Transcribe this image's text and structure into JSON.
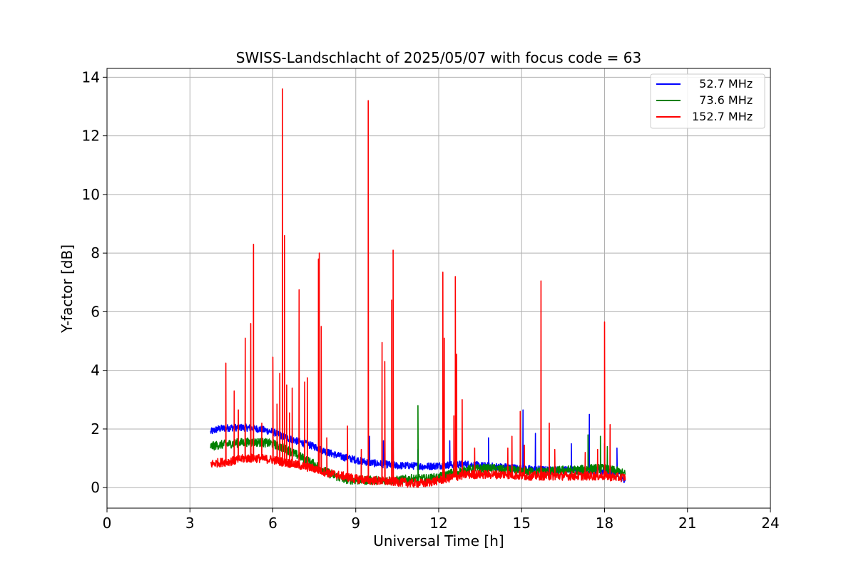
{
  "chart_data": {
    "type": "line",
    "title": "SWISS-Landschlacht of 2025/05/07 with focus code = 63",
    "xlabel": "Universal Time [h]",
    "ylabel": "Y-factor [dB]",
    "xlim": [
      0,
      24
    ],
    "ylim": [
      -0.7,
      14.3
    ],
    "xticks": [
      0,
      3,
      6,
      9,
      12,
      15,
      18,
      21,
      24
    ],
    "yticks": [
      0,
      2,
      4,
      6,
      8,
      10,
      12,
      14
    ],
    "grid": true,
    "legend_position": "top-right",
    "series": [
      {
        "name": "  52.7 MHz",
        "color": "#0000ff",
        "points": [
          [
            3.75,
            1.9
          ],
          [
            4.0,
            2.0
          ],
          [
            4.5,
            2.05
          ],
          [
            5.0,
            2.05
          ],
          [
            5.5,
            2.0
          ],
          [
            6.0,
            1.9
          ],
          [
            6.5,
            1.7
          ],
          [
            7.0,
            1.55
          ],
          [
            7.5,
            1.4
          ],
          [
            8.0,
            1.2
          ],
          [
            8.5,
            1.05
          ],
          [
            9.0,
            0.95
          ],
          [
            9.5,
            0.85
          ],
          [
            10.0,
            0.8
          ],
          [
            10.5,
            0.75
          ],
          [
            11.0,
            0.75
          ],
          [
            11.5,
            0.72
          ],
          [
            12.0,
            0.75
          ],
          [
            12.5,
            0.78
          ],
          [
            13.0,
            0.8
          ],
          [
            13.5,
            0.75
          ],
          [
            14.0,
            0.72
          ],
          [
            14.5,
            0.7
          ],
          [
            15.0,
            0.65
          ],
          [
            15.5,
            0.62
          ],
          [
            16.0,
            0.6
          ],
          [
            16.5,
            0.6
          ],
          [
            17.0,
            0.6
          ],
          [
            17.5,
            0.58
          ],
          [
            18.0,
            0.55
          ],
          [
            18.5,
            0.5
          ],
          [
            18.75,
            0.15
          ]
        ],
        "spikes": [
          [
            9.5,
            1.75
          ],
          [
            10.0,
            1.6
          ],
          [
            10.35,
            1.6
          ],
          [
            11.25,
            1.3
          ],
          [
            12.4,
            1.6
          ],
          [
            13.8,
            1.7
          ],
          [
            15.05,
            2.65
          ],
          [
            15.5,
            1.85
          ],
          [
            16.8,
            1.5
          ],
          [
            17.45,
            2.5
          ],
          [
            18.0,
            1.5
          ],
          [
            18.45,
            1.35
          ]
        ],
        "band": 0.25
      },
      {
        "name": "  73.6 MHz",
        "color": "#008000",
        "points": [
          [
            3.75,
            1.4
          ],
          [
            4.0,
            1.45
          ],
          [
            4.5,
            1.5
          ],
          [
            5.0,
            1.55
          ],
          [
            5.5,
            1.55
          ],
          [
            6.0,
            1.5
          ],
          [
            6.5,
            1.3
          ],
          [
            7.0,
            1.05
          ],
          [
            7.5,
            0.8
          ],
          [
            8.0,
            0.5
          ],
          [
            8.5,
            0.3
          ],
          [
            9.0,
            0.25
          ],
          [
            9.5,
            0.25
          ],
          [
            10.0,
            0.25
          ],
          [
            10.5,
            0.25
          ],
          [
            11.0,
            0.3
          ],
          [
            11.5,
            0.3
          ],
          [
            12.0,
            0.35
          ],
          [
            12.5,
            0.5
          ],
          [
            13.0,
            0.6
          ],
          [
            13.5,
            0.65
          ],
          [
            14.0,
            0.65
          ],
          [
            14.5,
            0.6
          ],
          [
            15.0,
            0.55
          ],
          [
            15.5,
            0.55
          ],
          [
            16.0,
            0.55
          ],
          [
            16.5,
            0.6
          ],
          [
            17.0,
            0.6
          ],
          [
            17.5,
            0.65
          ],
          [
            18.0,
            0.65
          ],
          [
            18.5,
            0.55
          ],
          [
            18.75,
            0.45
          ]
        ],
        "spikes": [
          [
            11.25,
            2.8
          ],
          [
            17.4,
            1.8
          ],
          [
            17.85,
            1.75
          ],
          [
            18.1,
            1.4
          ]
        ],
        "band": 0.3
      },
      {
        "name": "152.7 MHz",
        "color": "#ff0000",
        "points": [
          [
            3.75,
            0.8
          ],
          [
            4.0,
            0.85
          ],
          [
            4.5,
            0.9
          ],
          [
            5.0,
            1.0
          ],
          [
            5.5,
            1.0
          ],
          [
            6.0,
            0.95
          ],
          [
            6.5,
            0.85
          ],
          [
            7.0,
            0.75
          ],
          [
            7.5,
            0.65
          ],
          [
            8.0,
            0.5
          ],
          [
            8.5,
            0.4
          ],
          [
            9.0,
            0.3
          ],
          [
            9.5,
            0.25
          ],
          [
            10.0,
            0.22
          ],
          [
            10.5,
            0.2
          ],
          [
            11.0,
            0.15
          ],
          [
            11.5,
            0.15
          ],
          [
            12.0,
            0.25
          ],
          [
            12.5,
            0.35
          ],
          [
            13.0,
            0.45
          ],
          [
            13.5,
            0.45
          ],
          [
            14.0,
            0.45
          ],
          [
            14.5,
            0.45
          ],
          [
            15.0,
            0.4
          ],
          [
            15.5,
            0.4
          ],
          [
            16.0,
            0.4
          ],
          [
            16.5,
            0.4
          ],
          [
            17.0,
            0.4
          ],
          [
            17.5,
            0.4
          ],
          [
            18.0,
            0.4
          ],
          [
            18.5,
            0.35
          ],
          [
            18.75,
            0.35
          ]
        ],
        "spikes": [
          [
            4.3,
            4.25
          ],
          [
            4.6,
            3.3
          ],
          [
            4.75,
            2.65
          ],
          [
            5.0,
            5.1
          ],
          [
            5.2,
            5.6
          ],
          [
            5.3,
            8.3
          ],
          [
            5.6,
            2.2
          ],
          [
            6.0,
            4.45
          ],
          [
            6.15,
            2.85
          ],
          [
            6.25,
            3.9
          ],
          [
            6.35,
            13.6
          ],
          [
            6.42,
            8.6
          ],
          [
            6.5,
            3.5
          ],
          [
            6.6,
            2.55
          ],
          [
            6.7,
            3.4
          ],
          [
            6.95,
            6.75
          ],
          [
            7.15,
            3.6
          ],
          [
            7.25,
            3.75
          ],
          [
            7.65,
            7.8
          ],
          [
            7.68,
            8.0
          ],
          [
            7.75,
            5.5
          ],
          [
            7.95,
            1.7
          ],
          [
            8.7,
            2.1
          ],
          [
            9.2,
            1.3
          ],
          [
            9.45,
            13.2
          ],
          [
            9.95,
            4.95
          ],
          [
            10.05,
            4.3
          ],
          [
            10.3,
            6.4
          ],
          [
            10.35,
            8.1
          ],
          [
            12.15,
            7.35
          ],
          [
            12.2,
            5.1
          ],
          [
            12.55,
            2.45
          ],
          [
            12.6,
            7.2
          ],
          [
            12.65,
            4.55
          ],
          [
            12.85,
            3.0
          ],
          [
            13.3,
            1.35
          ],
          [
            14.5,
            1.35
          ],
          [
            14.65,
            1.75
          ],
          [
            14.95,
            2.6
          ],
          [
            15.1,
            1.45
          ],
          [
            15.7,
            7.05
          ],
          [
            16.0,
            2.2
          ],
          [
            16.2,
            1.3
          ],
          [
            17.3,
            1.2
          ],
          [
            17.75,
            1.3
          ],
          [
            18.0,
            5.65
          ],
          [
            18.2,
            2.15
          ]
        ],
        "band": 0.3
      }
    ]
  }
}
